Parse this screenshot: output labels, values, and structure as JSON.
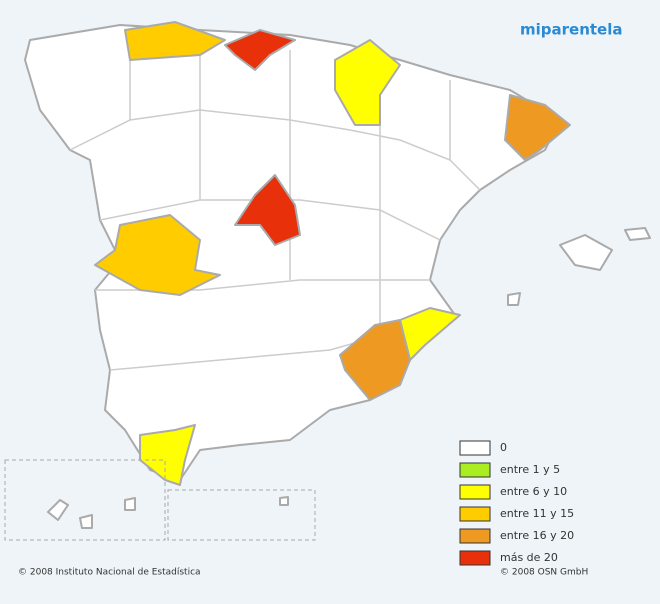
{
  "logo": "miparentela",
  "legend": [
    {
      "label": "0",
      "color": "#ffffff"
    },
    {
      "label": "entre 1 y 5",
      "color": "#aaee22"
    },
    {
      "label": "entre 6 y 10",
      "color": "#ffff00"
    },
    {
      "label": "entre 11 y 15",
      "color": "#ffcc00"
    },
    {
      "label": "entre 16 y 20",
      "color": "#ee9922"
    },
    {
      "label": "más de 20",
      "color": "#e8300a"
    }
  ],
  "footer": {
    "left": "© 2008 Instituto Nacional de Estadística",
    "right": "© 2008 OSN GmbH"
  }
}
